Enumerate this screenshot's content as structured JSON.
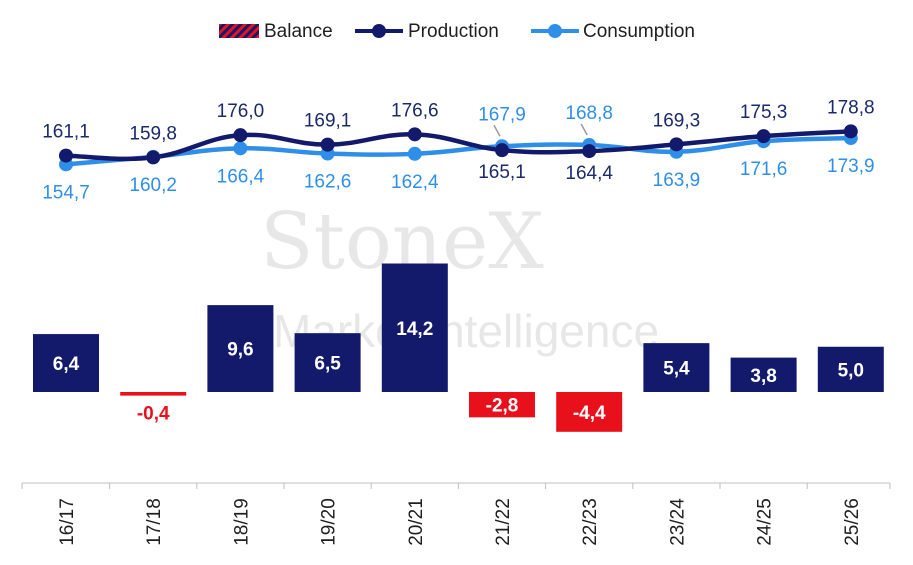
{
  "watermark": {
    "brand": "StoneX",
    "subtitle": "Market Intelligence"
  },
  "colors": {
    "production": "#13196b",
    "consumption": "#2f8fe8",
    "balance_positive": "#13196b",
    "balance_negative": "#e8111b",
    "balance_legend_stripe": "#13196b",
    "axis": "#bfbfbf"
  },
  "legend": {
    "position": "top-center",
    "items": [
      {
        "key": "balance",
        "label": "Balance",
        "marker": "striped-bar"
      },
      {
        "key": "production",
        "label": "Production",
        "marker": "line-dot"
      },
      {
        "key": "consumption",
        "label": "Consumption",
        "marker": "line-dot"
      }
    ]
  },
  "chart_data": {
    "type": "bar",
    "categories": [
      "16/17",
      "17/18",
      "18/19",
      "19/20",
      "20/21",
      "21/22",
      "22/23",
      "23/24",
      "24/25",
      "25/26"
    ],
    "series": [
      {
        "name": "Balance",
        "type": "bar",
        "values": [
          6.4,
          -0.4,
          9.6,
          6.5,
          14.2,
          -2.8,
          -4.4,
          5.4,
          3.8,
          5.0
        ],
        "labels": [
          "6,4",
          "-0,4",
          "9,6",
          "6,5",
          "14,2",
          "-2,8",
          "-4,4",
          "5,4",
          "3,8",
          "5,0"
        ]
      },
      {
        "name": "Production",
        "type": "line",
        "smooth": true,
        "values": [
          161.1,
          159.8,
          176.0,
          169.1,
          176.6,
          165.1,
          164.4,
          169.3,
          175.3,
          178.8
        ],
        "labels": [
          "161,1",
          "159,8",
          "176,0",
          "169,1",
          "176,6",
          "165,1",
          "164,4",
          "169,3",
          "175,3",
          "178,8"
        ]
      },
      {
        "name": "Consumption",
        "type": "line",
        "smooth": true,
        "values": [
          154.7,
          160.2,
          166.4,
          162.6,
          162.4,
          167.9,
          168.8,
          163.9,
          171.6,
          173.9
        ],
        "labels": [
          "154,7",
          "160,2",
          "166,4",
          "162,6",
          "162,4",
          "167,9",
          "168,8",
          "163,9",
          "171,6",
          "173,9"
        ]
      }
    ],
    "title": "",
    "xlabel": "",
    "ylabel": "",
    "grid": false,
    "x_tick_rotation": -90
  }
}
